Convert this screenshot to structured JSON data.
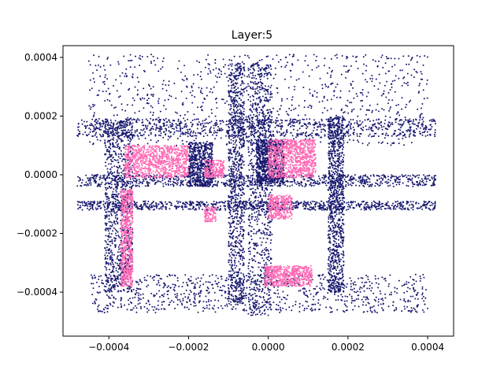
{
  "chart_data": {
    "type": "scatter",
    "title": "Layer:5",
    "xlabel": "",
    "ylabel": "",
    "xlim": [
      -0.000515,
      0.000465
    ],
    "ylim": [
      -0.00055,
      0.00044
    ],
    "grid": false,
    "legend": "none",
    "xticks": [
      {
        "value": -0.0004,
        "label": "−0.0004"
      },
      {
        "value": -0.0002,
        "label": "−0.0002"
      },
      {
        "value": 0.0,
        "label": "0.0000"
      },
      {
        "value": 0.0002,
        "label": "0.0002"
      },
      {
        "value": 0.0004,
        "label": "0.0004"
      }
    ],
    "yticks": [
      {
        "value": 0.0004,
        "label": "0.0004"
      },
      {
        "value": 0.0002,
        "label": "0.0002"
      },
      {
        "value": 0.0,
        "label": "0.0000"
      },
      {
        "value": -0.0002,
        "label": "−0.0002"
      },
      {
        "value": -0.0004,
        "label": "−0.0004"
      }
    ],
    "series": [
      {
        "color": "#191970",
        "clusters": [
          {
            "x": [
              -0.00048,
              0.00042
            ],
            "y": [
              -0.00012,
              -9e-05
            ]
          },
          {
            "x": [
              -0.00048,
              0.00042
            ],
            "y": [
              -4e-05,
              0.0
            ]
          },
          {
            "x": [
              -0.00048,
              0.00042
            ],
            "y": [
              0.00013,
              0.00019
            ]
          },
          {
            "x": [
              -0.00045,
              0.0004
            ],
            "y": [
              -0.00047,
              -0.00034
            ]
          },
          {
            "x": [
              -0.00045,
              0.0004
            ],
            "y": [
              0.0001,
              0.00041
            ]
          },
          {
            "x": [
              -5e-05,
              1e-05
            ],
            "y": [
              -0.00048,
              0.00038
            ]
          },
          {
            "x": [
              -0.0002,
              -0.00014
            ],
            "y": [
              -4e-05,
              0.00011
            ]
          },
          {
            "x": [
              -0.00041,
              -0.00034
            ],
            "y": [
              -0.0004,
              0.00019
            ]
          },
          {
            "x": [
              0.00015,
              0.00019
            ],
            "y": [
              -0.0004,
              0.0002
            ]
          },
          {
            "x": [
              -3e-05,
              4e-05
            ],
            "y": [
              -3e-05,
              0.00012
            ]
          },
          {
            "x": [
              -0.0001,
              -6e-05
            ],
            "y": [
              -0.00044,
              0.00038
            ]
          }
        ]
      },
      {
        "color": "#ff69b4",
        "clusters": [
          {
            "x": [
              0.0,
              0.00012
            ],
            "y": [
              -1e-05,
              0.00012
            ]
          },
          {
            "x": [
              -0.00036,
              -0.0002
            ],
            "y": [
              -1e-05,
              0.0001
            ]
          },
          {
            "x": [
              -0.00016,
              -0.00011
            ],
            "y": [
              -1e-05,
              5e-05
            ]
          },
          {
            "x": [
              -0.00037,
              -0.00034
            ],
            "y": [
              -0.00038,
              -5e-05
            ]
          },
          {
            "x": [
              -1e-05,
              0.00011
            ],
            "y": [
              -0.00038,
              -0.00031
            ]
          },
          {
            "x": [
              0.0,
              6e-05
            ],
            "y": [
              -0.00015,
              -7e-05
            ]
          },
          {
            "x": [
              -0.00016,
              -0.00013
            ],
            "y": [
              -0.00016,
              -0.00011
            ]
          }
        ]
      }
    ]
  }
}
